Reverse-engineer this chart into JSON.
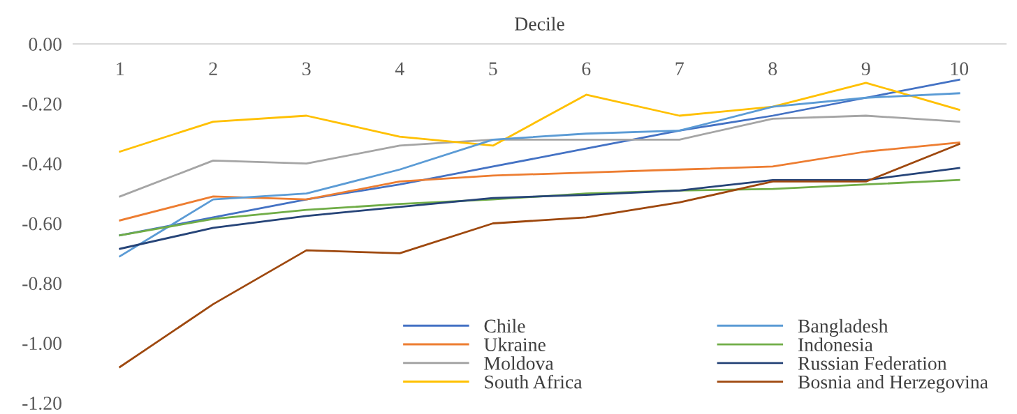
{
  "chart_data": {
    "type": "line",
    "xlabel": "Decile",
    "categories": [
      "1",
      "2",
      "3",
      "4",
      "5",
      "6",
      "7",
      "8",
      "9",
      "10"
    ],
    "ylim": [
      -1.2,
      0
    ],
    "yticks": [
      {
        "value": 0,
        "label": "0.00"
      },
      {
        "value": -0.2,
        "label": "-0.20"
      },
      {
        "value": -0.4,
        "label": "-0.40"
      },
      {
        "value": -0.6,
        "label": "-0.60"
      },
      {
        "value": -0.8,
        "label": "-0.80"
      },
      {
        "value": -1.0,
        "label": "-1.00"
      },
      {
        "value": -1.2,
        "label": "-1.20"
      }
    ],
    "grid": false,
    "legend": "bottom right",
    "marker": "none",
    "line_style": "solid",
    "series": [
      {
        "name": "Chile",
        "color": "#4472c4",
        "values": [
          -0.64,
          -0.58,
          -0.52,
          -0.47,
          -0.41,
          -0.35,
          -0.29,
          -0.24,
          -0.18,
          -0.12
        ]
      },
      {
        "name": "Ukraine",
        "color": "#ed7d31",
        "values": [
          -0.59,
          -0.51,
          -0.52,
          -0.46,
          -0.44,
          -0.43,
          -0.42,
          -0.41,
          -0.36,
          -0.33
        ]
      },
      {
        "name": "Moldova",
        "color": "#a5a5a5",
        "values": [
          -0.51,
          -0.39,
          -0.4,
          -0.34,
          -0.32,
          -0.32,
          -0.32,
          -0.25,
          -0.24,
          -0.26
        ]
      },
      {
        "name": "South Africa",
        "color": "#ffc000",
        "values": [
          -0.36,
          -0.26,
          -0.24,
          -0.31,
          -0.34,
          -0.17,
          -0.24,
          -0.21,
          -0.13,
          -0.22
        ]
      },
      {
        "name": "Bangladesh",
        "color": "#5b9bd5",
        "values": [
          -0.71,
          -0.52,
          -0.5,
          -0.42,
          -0.32,
          -0.3,
          -0.29,
          -0.21,
          -0.18,
          -0.165
        ]
      },
      {
        "name": "Indonesia",
        "color": "#70ad47",
        "values": [
          -0.64,
          -0.585,
          -0.555,
          -0.535,
          -0.52,
          -0.5,
          -0.49,
          -0.485,
          -0.47,
          -0.455
        ]
      },
      {
        "name": "Russian Federation",
        "color": "#264478",
        "values": [
          -0.685,
          -0.615,
          -0.575,
          -0.545,
          -0.515,
          -0.505,
          -0.49,
          -0.455,
          -0.455,
          -0.415
        ]
      },
      {
        "name": "Bosnia and Herzegovina",
        "color": "#9e480e",
        "values": [
          -1.08,
          -0.87,
          -0.69,
          -0.7,
          -0.6,
          -0.58,
          -0.53,
          -0.46,
          -0.46,
          -0.335
        ]
      }
    ]
  }
}
